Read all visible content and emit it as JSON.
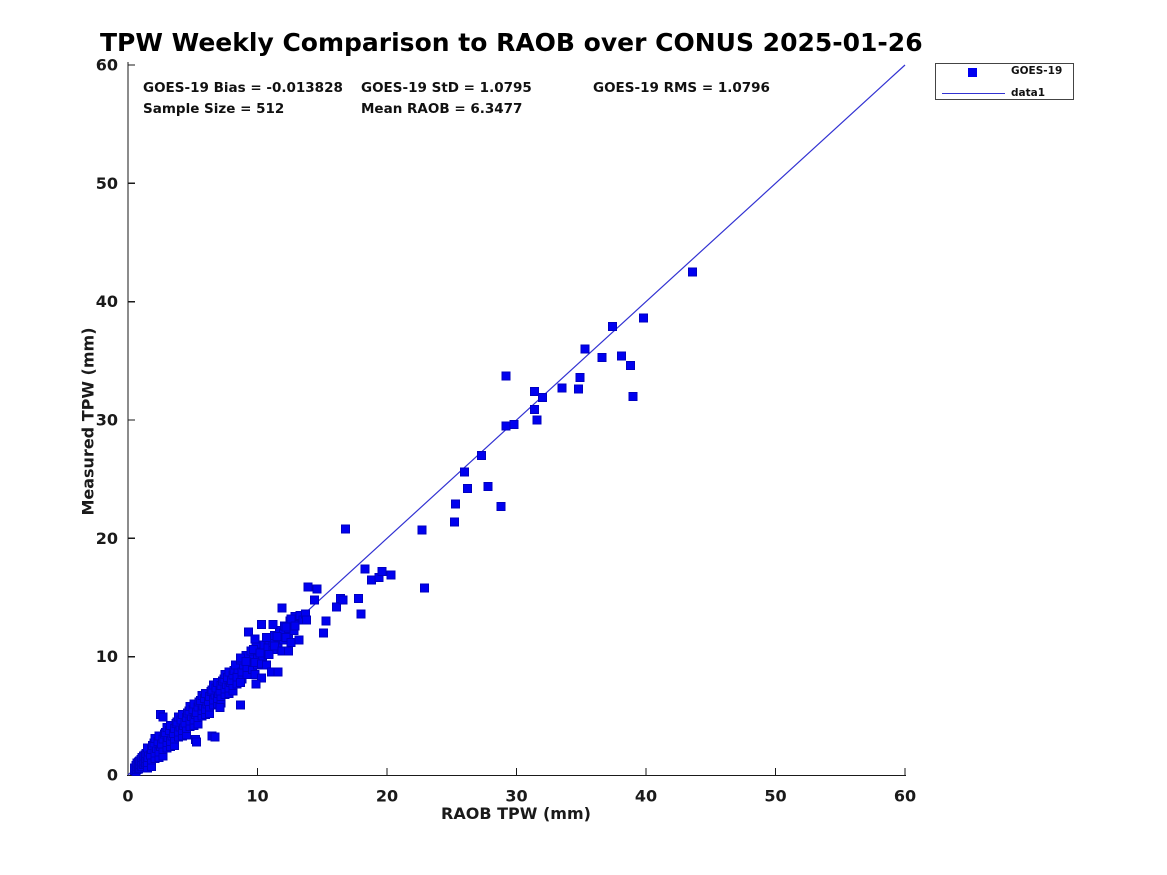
{
  "title": "TPW Weekly Comparison to RAOB over CONUS 2025-01-26",
  "stats": {
    "bias": "GOES-19 Bias = -0.013828",
    "std": "GOES-19 StD = 1.0795",
    "rms": "GOES-19 RMS = 1.0796",
    "sample_size": "Sample Size = 512",
    "mean_raob": "Mean RAOB = 6.3477"
  },
  "legend": {
    "items": [
      {
        "label": "GOES-19",
        "type": "marker"
      },
      {
        "label": "data1",
        "type": "line"
      }
    ]
  },
  "colors": {
    "marker_fill": "#0000f0",
    "marker_edge": "#0000c0",
    "line": "#3232d2",
    "axis": "#1a1a1a"
  },
  "chart_data": {
    "type": "scatter",
    "title": "TPW Weekly Comparison to RAOB over CONUS 2025-01-26",
    "xlabel": "RAOB TPW (mm)",
    "ylabel": "Measured TPW (mm)",
    "xlim": [
      0,
      60
    ],
    "ylim": [
      0,
      60
    ],
    "xticks": [
      0,
      10,
      20,
      30,
      40,
      50,
      60
    ],
    "yticks": [
      0,
      10,
      20,
      30,
      40,
      50,
      60
    ],
    "grid": false,
    "legend_position": "top-right-outside",
    "annotations": [
      "GOES-19 Bias = -0.013828",
      "GOES-19 StD = 1.0795",
      "GOES-19 RMS = 1.0796",
      "Sample Size = 512",
      "Mean RAOB = 6.3477"
    ],
    "reference_line": {
      "name": "data1",
      "from": [
        0,
        0
      ],
      "to": [
        60,
        60
      ]
    },
    "series": [
      {
        "name": "GOES-19",
        "marker": "square",
        "points": [
          [
            0.5,
            0.4
          ],
          [
            0.5,
            0.6
          ],
          [
            0.6,
            0.3
          ],
          [
            0.6,
            0.55
          ],
          [
            0.6,
            0.8
          ],
          [
            0.7,
            0.45
          ],
          [
            0.7,
            0.7
          ],
          [
            0.7,
            1.0
          ],
          [
            0.8,
            0.5
          ],
          [
            0.8,
            0.75
          ],
          [
            0.8,
            1.1
          ],
          [
            0.9,
            0.6
          ],
          [
            0.9,
            0.9
          ],
          [
            0.9,
            1.2
          ],
          [
            1.0,
            0.7
          ],
          [
            1.0,
            1.0
          ],
          [
            1.0,
            1.3
          ],
          [
            1.1,
            0.7
          ],
          [
            1.1,
            1.1
          ],
          [
            1.1,
            1.5
          ],
          [
            1.2,
            0.9
          ],
          [
            1.2,
            1.2
          ],
          [
            1.2,
            1.6
          ],
          [
            1.3,
            0.9
          ],
          [
            1.3,
            1.3
          ],
          [
            1.3,
            1.7
          ],
          [
            1.4,
            1.0
          ],
          [
            1.4,
            1.4
          ],
          [
            1.4,
            1.8
          ],
          [
            1.5,
            0.6
          ],
          [
            1.5,
            1.05
          ],
          [
            1.55,
            1.5
          ],
          [
            1.6,
            1.95
          ],
          [
            1.5,
            2.3
          ],
          [
            1.8,
            0.7
          ],
          [
            1.8,
            1.25
          ],
          [
            1.75,
            1.7
          ],
          [
            1.8,
            2.15
          ],
          [
            1.9,
            2.5
          ],
          [
            2.1,
            1.4
          ],
          [
            2.1,
            1.85
          ],
          [
            2.2,
            2.25
          ],
          [
            2.0,
            2.7
          ],
          [
            2.1,
            3.1
          ],
          [
            2.4,
            1.5
          ],
          [
            2.4,
            1.95
          ],
          [
            2.5,
            2.4
          ],
          [
            2.3,
            2.85
          ],
          [
            2.4,
            3.3
          ],
          [
            2.7,
            1.6
          ],
          [
            2.7,
            2.15
          ],
          [
            2.6,
            2.6
          ],
          [
            2.7,
            3.05
          ],
          [
            2.8,
            3.45
          ],
          [
            3.0,
            2.3
          ],
          [
            3.0,
            2.75
          ],
          [
            3.1,
            3.15
          ],
          [
            2.9,
            3.6
          ],
          [
            3.0,
            4.0
          ],
          [
            3.3,
            2.4
          ],
          [
            3.3,
            2.85
          ],
          [
            3.4,
            3.3
          ],
          [
            3.2,
            3.75
          ],
          [
            3.3,
            4.2
          ],
          [
            3.6,
            2.5
          ],
          [
            3.6,
            3.05
          ],
          [
            3.5,
            3.5
          ],
          [
            3.6,
            3.95
          ],
          [
            3.7,
            4.35
          ],
          [
            3.9,
            3.2
          ],
          [
            3.9,
            3.65
          ],
          [
            4.0,
            4.05
          ],
          [
            3.8,
            4.5
          ],
          [
            3.9,
            4.9
          ],
          [
            4.2,
            3.3
          ],
          [
            4.2,
            3.75
          ],
          [
            4.3,
            4.2
          ],
          [
            4.1,
            4.65
          ],
          [
            4.2,
            5.1
          ],
          [
            4.5,
            3.4
          ],
          [
            4.5,
            3.95
          ],
          [
            4.4,
            4.4
          ],
          [
            4.5,
            4.85
          ],
          [
            4.6,
            5.25
          ],
          [
            4.8,
            4.1
          ],
          [
            4.8,
            4.55
          ],
          [
            4.9,
            4.95
          ],
          [
            4.7,
            5.4
          ],
          [
            4.8,
            5.8
          ],
          [
            5.1,
            4.2
          ],
          [
            5.1,
            4.65
          ],
          [
            5.2,
            5.1
          ],
          [
            5.0,
            5.55
          ],
          [
            5.1,
            6.0
          ],
          [
            5.4,
            4.3
          ],
          [
            5.4,
            4.85
          ],
          [
            5.3,
            5.3
          ],
          [
            5.4,
            5.75
          ],
          [
            5.5,
            6.15
          ],
          [
            5.7,
            5.0
          ],
          [
            5.7,
            5.45
          ],
          [
            5.8,
            5.85
          ],
          [
            5.6,
            6.3
          ],
          [
            5.7,
            6.7
          ],
          [
            6.0,
            5.1
          ],
          [
            6.0,
            5.55
          ],
          [
            6.1,
            6.0
          ],
          [
            5.9,
            6.45
          ],
          [
            6.0,
            6.9
          ],
          [
            6.3,
            5.2
          ],
          [
            6.3,
            5.75
          ],
          [
            6.2,
            6.2
          ],
          [
            6.3,
            6.65
          ],
          [
            6.4,
            7.05
          ],
          [
            6.6,
            5.9
          ],
          [
            6.6,
            6.35
          ],
          [
            6.7,
            6.75
          ],
          [
            6.5,
            7.2
          ],
          [
            6.6,
            7.6
          ],
          [
            6.9,
            6.0
          ],
          [
            6.9,
            6.45
          ],
          [
            7.0,
            6.9
          ],
          [
            6.8,
            7.35
          ],
          [
            6.9,
            7.8
          ],
          [
            7.2,
            6.1
          ],
          [
            7.2,
            6.65
          ],
          [
            7.1,
            7.1
          ],
          [
            7.2,
            7.55
          ],
          [
            7.3,
            7.95
          ],
          [
            7.5,
            6.8
          ],
          [
            7.5,
            7.25
          ],
          [
            7.6,
            7.65
          ],
          [
            7.4,
            8.1
          ],
          [
            7.5,
            8.5
          ],
          [
            7.8,
            6.9
          ],
          [
            7.8,
            7.35
          ],
          [
            7.9,
            7.8
          ],
          [
            7.7,
            8.25
          ],
          [
            7.8,
            8.7
          ],
          [
            8.1,
            7.1
          ],
          [
            8.1,
            7.55
          ],
          [
            8.0,
            8.0
          ],
          [
            8.1,
            8.45
          ],
          [
            8.2,
            8.85
          ],
          [
            8.4,
            7.7
          ],
          [
            8.4,
            8.3
          ],
          [
            8.5,
            8.9
          ],
          [
            8.3,
            9.3
          ],
          [
            8.8,
            8.1
          ],
          [
            8.8,
            8.7
          ],
          [
            8.9,
            9.3
          ],
          [
            8.7,
            9.7
          ],
          [
            9.2,
            8.5
          ],
          [
            9.2,
            9.1
          ],
          [
            9.3,
            9.7
          ],
          [
            9.1,
            10.1
          ],
          [
            9.6,
            8.9
          ],
          [
            9.6,
            9.5
          ],
          [
            9.7,
            10.1
          ],
          [
            9.5,
            10.5
          ],
          [
            10.0,
            9.3
          ],
          [
            10.0,
            9.9
          ],
          [
            10.1,
            10.5
          ],
          [
            9.9,
            10.9
          ],
          [
            10.4,
            9.8
          ],
          [
            10.4,
            10.4
          ],
          [
            10.5,
            11.0
          ],
          [
            10.8,
            10.2
          ],
          [
            10.8,
            10.8
          ],
          [
            10.9,
            11.4
          ],
          [
            11.2,
            10.6
          ],
          [
            11.2,
            11.2
          ],
          [
            11.3,
            11.8
          ],
          [
            11.6,
            11.0
          ],
          [
            11.6,
            11.6
          ],
          [
            11.7,
            12.2
          ],
          [
            12.0,
            11.4
          ],
          [
            12.0,
            12.0
          ],
          [
            12.1,
            12.6
          ],
          [
            12.4,
            11.8
          ],
          [
            12.4,
            12.4
          ],
          [
            12.5,
            13.0
          ],
          [
            12.8,
            12.2
          ],
          [
            12.8,
            12.8
          ],
          [
            12.9,
            13.4
          ],
          [
            9.3,
            12.1
          ],
          [
            10.3,
            12.7
          ],
          [
            11.2,
            12.7
          ],
          [
            11.9,
            14.1
          ],
          [
            12.2,
            12.5
          ],
          [
            12.6,
            13.2
          ],
          [
            12.9,
            12.6
          ],
          [
            13.3,
            13.5
          ],
          [
            13.5,
            13.1
          ],
          [
            9.8,
            11.5
          ],
          [
            10.7,
            11.6
          ],
          [
            11.5,
            11.7
          ],
          [
            12.2,
            11.6
          ],
          [
            12.6,
            11.2
          ],
          [
            13.2,
            11.4
          ],
          [
            11.3,
            10.9
          ],
          [
            11.9,
            10.5
          ],
          [
            12.4,
            10.5
          ],
          [
            9.7,
            10.6
          ],
          [
            10.2,
            10.3
          ],
          [
            10.9,
            10.2
          ],
          [
            8.7,
            9.9
          ],
          [
            9.1,
            9.6
          ],
          [
            9.8,
            9.5
          ],
          [
            10.3,
            9.4
          ],
          [
            10.7,
            9.3
          ],
          [
            9.8,
            8.5
          ],
          [
            10.3,
            8.2
          ],
          [
            11.1,
            8.7
          ],
          [
            11.6,
            8.7
          ],
          [
            8.7,
            7.8
          ],
          [
            2.5,
            5.1
          ],
          [
            2.7,
            4.9
          ],
          [
            5.2,
            3.0
          ],
          [
            5.3,
            2.8
          ],
          [
            6.5,
            3.3
          ],
          [
            6.7,
            3.2
          ],
          [
            7.1,
            5.7
          ],
          [
            8.7,
            5.9
          ],
          [
            9.9,
            7.7
          ],
          [
            13.7,
            13.6
          ],
          [
            13.8,
            13.1
          ],
          [
            13.9,
            15.9
          ],
          [
            14.6,
            15.7
          ],
          [
            14.4,
            14.8
          ],
          [
            15.3,
            13.0
          ],
          [
            15.1,
            12.0
          ],
          [
            16.4,
            14.9
          ],
          [
            16.1,
            14.2
          ],
          [
            16.6,
            14.8
          ],
          [
            17.8,
            14.9
          ],
          [
            18.0,
            13.6
          ],
          [
            16.8,
            20.8
          ],
          [
            18.3,
            17.4
          ],
          [
            18.8,
            16.5
          ],
          [
            19.4,
            16.7
          ],
          [
            20.3,
            16.9
          ],
          [
            19.6,
            17.2
          ],
          [
            22.7,
            20.7
          ],
          [
            22.9,
            15.8
          ],
          [
            25.2,
            21.4
          ],
          [
            25.3,
            22.9
          ],
          [
            28.8,
            22.7
          ],
          [
            26.2,
            24.2
          ],
          [
            27.8,
            24.4
          ],
          [
            26.0,
            25.6
          ],
          [
            27.3,
            27.0
          ],
          [
            29.2,
            29.5
          ],
          [
            29.8,
            29.6
          ],
          [
            31.6,
            30.0
          ],
          [
            31.4,
            30.9
          ],
          [
            32.0,
            31.9
          ],
          [
            31.4,
            32.4
          ],
          [
            33.5,
            32.7
          ],
          [
            34.8,
            32.6
          ],
          [
            39.0,
            32.0
          ],
          [
            34.9,
            33.6
          ],
          [
            29.2,
            33.7
          ],
          [
            36.6,
            35.3
          ],
          [
            38.1,
            35.4
          ],
          [
            38.8,
            34.6
          ],
          [
            35.3,
            36.0
          ],
          [
            37.4,
            37.9
          ],
          [
            39.8,
            38.6
          ],
          [
            43.6,
            42.5
          ]
        ]
      }
    ]
  }
}
